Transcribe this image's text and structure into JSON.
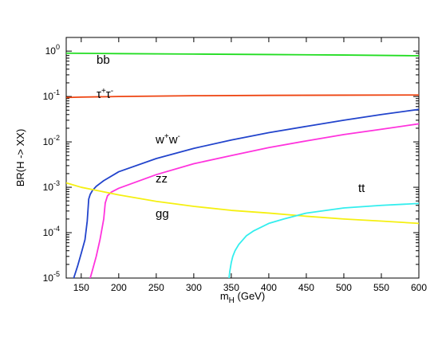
{
  "chart_data": {
    "type": "line",
    "xlabel": "m",
    "xlabel_sub": "H",
    "xlabel_unit": " (GeV)",
    "ylabel": "BR(H -> XX)",
    "xlim": [
      130,
      600
    ],
    "ylim": [
      1e-05,
      2
    ],
    "y_scale": "log",
    "grid": false,
    "x_ticks": [
      150,
      200,
      250,
      300,
      350,
      400,
      450,
      500,
      550,
      600
    ],
    "y_ticks": [
      {
        "value": 1,
        "base": "10",
        "exp": "0"
      },
      {
        "value": 0.1,
        "base": "10",
        "exp": "-1"
      },
      {
        "value": 0.01,
        "base": "10",
        "exp": "-2"
      },
      {
        "value": 0.001,
        "base": "10",
        "exp": "-3"
      },
      {
        "value": 0.0001,
        "base": "10",
        "exp": "-4"
      },
      {
        "value": 1e-05,
        "base": "10",
        "exp": "-5"
      }
    ],
    "series": [
      {
        "key": "bb",
        "name": "bb",
        "color": "#22dd22",
        "x": [
          130,
          200,
          300,
          400,
          500,
          600
        ],
        "y": [
          0.9,
          0.88,
          0.86,
          0.84,
          0.82,
          0.79
        ]
      },
      {
        "key": "tautau",
        "name": "τ⁺τ⁻",
        "color": "#ee4411",
        "x": [
          130,
          150,
          200,
          250,
          300,
          400,
          500,
          600
        ],
        "y": [
          0.095,
          0.097,
          0.1,
          0.102,
          0.104,
          0.106,
          0.107,
          0.108
        ]
      },
      {
        "key": "ww",
        "name": "w⁺w⁻",
        "color": "#2244cc",
        "x": [
          140,
          145,
          150,
          155,
          158,
          160,
          162,
          165,
          170,
          180,
          200,
          250,
          300,
          350,
          400,
          450,
          500,
          550,
          600
        ],
        "y": [
          1e-05,
          1.8e-05,
          3.5e-05,
          7e-05,
          0.00018,
          0.00055,
          0.0007,
          0.00085,
          0.00105,
          0.0014,
          0.0022,
          0.0043,
          0.0072,
          0.011,
          0.016,
          0.022,
          0.03,
          0.04,
          0.052
        ]
      },
      {
        "key": "zz",
        "name": "zz",
        "color": "#ff33dd",
        "x": [
          162,
          165,
          170,
          175,
          180,
          182,
          185,
          190,
          200,
          250,
          300,
          350,
          400,
          450,
          500,
          550,
          600
        ],
        "y": [
          1e-05,
          1.5e-05,
          3e-05,
          7e-05,
          0.0002,
          0.00045,
          0.00065,
          0.00078,
          0.00095,
          0.0019,
          0.0033,
          0.005,
          0.0075,
          0.0105,
          0.0145,
          0.019,
          0.025
        ]
      },
      {
        "key": "gg",
        "name": "gg",
        "color": "#f5f011",
        "x": [
          130,
          150,
          200,
          250,
          300,
          350,
          400,
          450,
          500,
          550,
          600
        ],
        "y": [
          0.00125,
          0.001,
          0.00068,
          0.00049,
          0.00038,
          0.00031,
          0.00027,
          0.00023,
          0.0002,
          0.00018,
          0.00016
        ]
      },
      {
        "key": "tt",
        "name": "tt",
        "color": "#33eeee",
        "x": [
          347,
          348,
          350,
          352,
          355,
          360,
          370,
          380,
          400,
          420,
          450,
          500,
          550,
          600
        ],
        "y": [
          1e-05,
          1.4e-05,
          2.2e-05,
          3e-05,
          4e-05,
          5.5e-05,
          8.5e-05,
          0.00011,
          0.00016,
          0.0002,
          0.00027,
          0.00035,
          0.0004,
          0.00044
        ]
      }
    ]
  }
}
